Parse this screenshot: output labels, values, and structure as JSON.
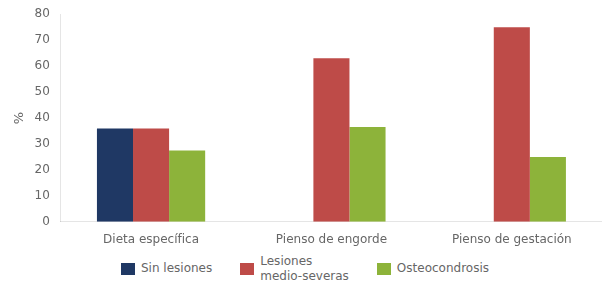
{
  "chart_data": {
    "type": "bar",
    "categories": [
      "Dieta específica",
      "Pienso de engorde",
      "Pienso de gestación"
    ],
    "series": [
      {
        "name": "Sin lesiones",
        "values": [
          36.0,
          0,
          0
        ],
        "color": "#1F3864"
      },
      {
        "name": "Lesiones\nmedio-severas",
        "values": [
          36.0,
          63.0,
          75.0
        ],
        "color": "#BE4B48"
      },
      {
        "name": "Osteocondrosis",
        "values": [
          27.5,
          36.5,
          25.0
        ],
        "color": "#8DB33A"
      }
    ],
    "ylabel": "%",
    "ylim": [
      0,
      80
    ],
    "yticks": [
      0,
      10,
      20,
      30,
      40,
      50,
      60,
      70,
      80
    ],
    "grid": false,
    "legend": "bottom"
  }
}
